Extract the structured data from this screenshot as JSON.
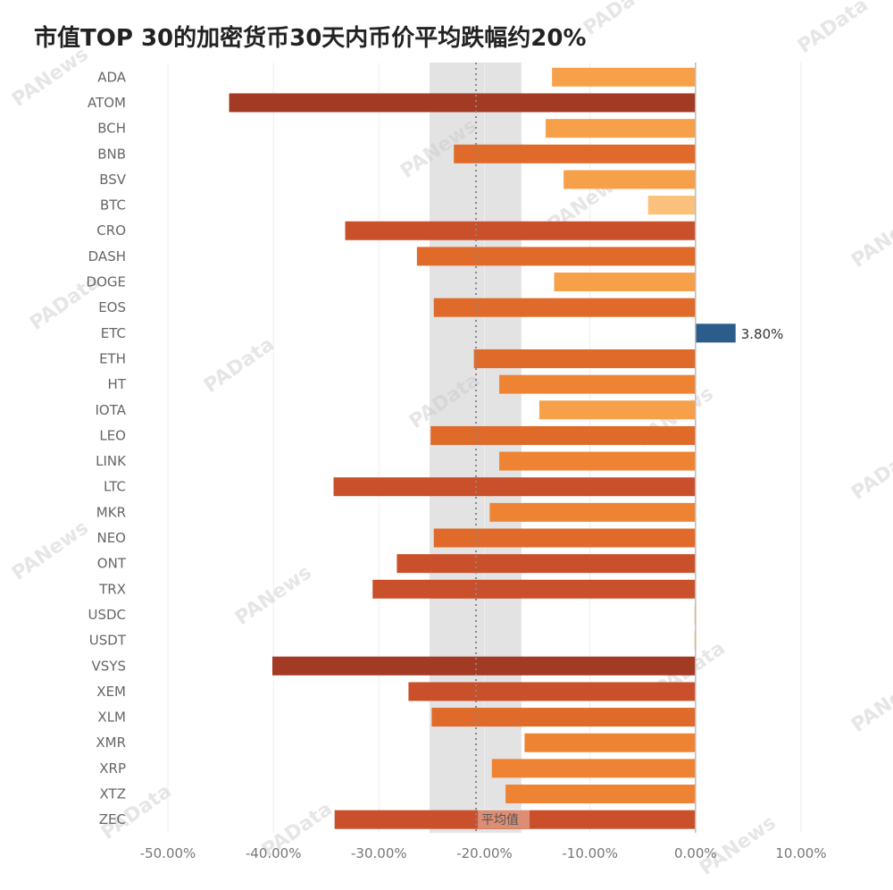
{
  "chart_data": {
    "type": "bar",
    "orientation": "horizontal",
    "title": "市值TOP 30的加密货币30天内币价平均跌幅约20%",
    "categories": [
      "ADA",
      "ATOM",
      "BCH",
      "BNB",
      "BSV",
      "BTC",
      "CRO",
      "DASH",
      "DOGE",
      "EOS",
      "ETC",
      "ETH",
      "HT",
      "IOTA",
      "LEO",
      "LINK",
      "LTC",
      "MKR",
      "NEO",
      "ONT",
      "TRX",
      "USDC",
      "USDT",
      "VSYS",
      "XEM",
      "XLM",
      "XMR",
      "XRP",
      "XTZ",
      "ZEC"
    ],
    "values": [
      -13.6,
      -44.2,
      -14.2,
      -22.9,
      -12.5,
      -4.5,
      -33.2,
      -26.4,
      -13.4,
      -24.8,
      3.8,
      -21.0,
      -18.6,
      -14.8,
      -25.1,
      -18.6,
      -34.3,
      -19.5,
      -24.8,
      -28.3,
      -30.6,
      -0.1,
      -0.1,
      -40.1,
      -27.2,
      -25.0,
      -16.2,
      -19.3,
      -18.0,
      -34.2
    ],
    "data_labels": {
      "ETC": "3.80%"
    },
    "xlim": [
      -50,
      10
    ],
    "x_ticks": [
      -50,
      -40,
      -30,
      -20,
      -10,
      0,
      10
    ],
    "x_tick_labels": [
      "-50.00%",
      "-40.00%",
      "-30.00%",
      "-20.00%",
      "-10.00%",
      "0.00%",
      "10.00%"
    ],
    "average_line": {
      "value": -20.8,
      "label": "平均值"
    },
    "average_band": [
      -25.2,
      -16.5
    ],
    "grid": true,
    "colors": {
      "positive": "#2b5c8a",
      "negative_scale": [
        "#fbc07c",
        "#f7a04a",
        "#ee8433",
        "#e06a2a",
        "#c9502a",
        "#a23a24"
      ],
      "band": "#e3e3e3",
      "avg_line": "#888888",
      "grid": "#eeeeee"
    }
  },
  "watermarks": [
    "PAData",
    "PANews"
  ]
}
